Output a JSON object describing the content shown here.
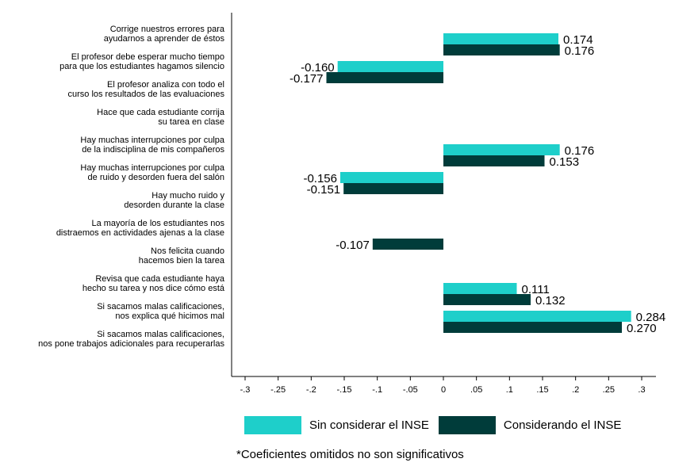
{
  "chart_data": {
    "type": "bar",
    "orientation": "horizontal",
    "categories": [
      [
        "Corrige nuestros errores para",
        "ayudarnos a aprender de éstos"
      ],
      [
        "El profesor debe esperar mucho tiempo",
        "para que los estudiantes hagamos silencio"
      ],
      [
        "El profesor analiza con todo el",
        "curso los resultados de las evaluaciones"
      ],
      [
        "Hace que cada estudiante corrija",
        "su tarea en clase"
      ],
      [
        "Hay muchas interrupciones por culpa",
        "de la indisciplina de mis compañeros"
      ],
      [
        "Hay muchas interrupciones por culpa",
        "de ruido y desorden fuera del salón"
      ],
      [
        "Hay mucho ruido y",
        "desorden durante la clase"
      ],
      [
        "La mayoría de los estudiantes nos",
        "distraemos en actividades ajenas a la clase"
      ],
      [
        "Nos felicita cuando",
        "hacemos bien la tarea"
      ],
      [
        "Revisa que cada estudiante haya",
        "hecho su tarea y nos dice cómo está"
      ],
      [
        "Si sacamos malas calificaciones,",
        "nos explica qué hicimos mal"
      ],
      [
        "Si sacamos malas calificaciones,",
        "nos pone trabajos adicionales para recuperarlas"
      ]
    ],
    "series": [
      {
        "name": "Sin considerar el INSE",
        "color": "#1ecfca",
        "values": [
          0.174,
          -0.16,
          null,
          null,
          0.176,
          -0.156,
          null,
          null,
          null,
          0.111,
          0.284,
          null
        ],
        "labels": [
          "0.174",
          "-0.160",
          "",
          "",
          "0.176",
          "-0.156",
          "",
          "",
          "",
          "0.111",
          "0.284",
          ""
        ]
      },
      {
        "name": "Considerando el INSE",
        "color": "#003c3a",
        "values": [
          0.176,
          -0.177,
          null,
          null,
          0.153,
          -0.151,
          null,
          -0.107,
          null,
          0.132,
          0.27,
          null
        ],
        "labels": [
          "0.176",
          "-0.177",
          "",
          "",
          "0.153",
          "-0.151",
          "",
          "-0.107",
          "",
          "0.132",
          "0.270",
          ""
        ]
      }
    ],
    "xlim": [
      -0.32,
      0.32
    ],
    "xticks": [
      -0.3,
      -0.25,
      -0.2,
      -0.15,
      -0.1,
      -0.05,
      0,
      0.05,
      0.1,
      0.15,
      0.2,
      0.25,
      0.3
    ],
    "xtick_labels": [
      "-.3",
      "-.25",
      "-.2",
      "-.15",
      "-.1",
      "-.05",
      "0",
      ".05",
      ".1",
      ".15",
      ".2",
      ".25",
      ".3"
    ],
    "grid": false,
    "legend_position": "bottom"
  },
  "legend": {
    "items": [
      {
        "label": "Sin considerar el INSE",
        "color": "#1ecfca"
      },
      {
        "label": "Considerando el INSE",
        "color": "#003c3a"
      }
    ]
  },
  "footnote": "*Coeficientes omitidos no son significativos"
}
